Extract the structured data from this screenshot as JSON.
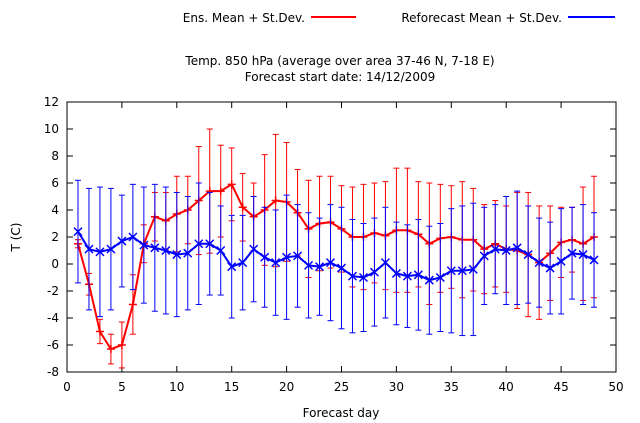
{
  "chart_data": {
    "type": "line",
    "title": "Temp. 850 hPa (average over area 37-46 N, 7-18 E)",
    "subtitle": "Forecast start date: 14/12/2009",
    "xlabel": "Forecast day",
    "ylabel": "T (C)",
    "xlim": [
      0,
      50
    ],
    "ylim": [
      -8,
      12
    ],
    "x_ticks": [
      "0",
      "5",
      "10",
      "15",
      "20",
      "25",
      "30",
      "35",
      "40",
      "45",
      "50"
    ],
    "y_ticks": [
      "-8",
      "-6",
      "-4",
      "-2",
      "0",
      "2",
      "4",
      "6",
      "8",
      "10",
      "12"
    ],
    "grid": false,
    "legend_position": "top",
    "x": [
      1,
      2,
      3,
      4,
      5,
      6,
      7,
      8,
      9,
      10,
      11,
      12,
      13,
      14,
      15,
      16,
      17,
      18,
      19,
      20,
      21,
      22,
      23,
      24,
      25,
      26,
      27,
      28,
      29,
      30,
      31,
      32,
      33,
      34,
      35,
      36,
      37,
      38,
      39,
      40,
      41,
      42,
      43,
      44,
      45,
      46,
      47,
      48
    ],
    "series": [
      {
        "name": "Ens. Mean + St.Dev.",
        "color": "#ff0000",
        "marker": "plus",
        "values": [
          1.5,
          -1.5,
          -5.0,
          -6.3,
          -6.0,
          -3.0,
          1.5,
          3.5,
          3.2,
          3.7,
          4.0,
          4.7,
          5.4,
          5.4,
          5.9,
          4.2,
          3.5,
          4.0,
          4.7,
          4.6,
          3.8,
          2.6,
          3.0,
          3.1,
          2.6,
          2.0,
          2.0,
          2.3,
          2.1,
          2.5,
          2.5,
          2.2,
          1.5,
          1.9,
          2.0,
          1.8,
          1.8,
          1.1,
          1.5,
          1.1,
          1.0,
          0.7,
          0.1,
          0.8,
          1.6,
          1.8,
          1.5,
          2.0
        ],
        "std": [
          0.3,
          0.8,
          0.9,
          1.1,
          1.7,
          2.2,
          1.4,
          1.8,
          2.1,
          2.8,
          2.5,
          4.0,
          4.6,
          3.4,
          2.7,
          2.5,
          2.5,
          4.1,
          4.9,
          4.4,
          3.2,
          3.6,
          3.5,
          3.4,
          3.2,
          3.7,
          3.9,
          3.7,
          4.0,
          4.6,
          4.6,
          3.9,
          4.5,
          4.0,
          3.8,
          4.3,
          3.8,
          3.3,
          3.2,
          3.2,
          4.3,
          4.6,
          4.2,
          3.5,
          2.6,
          2.4,
          4.2,
          4.5
        ]
      },
      {
        "name": "Reforecast Mean + St.Dev.",
        "color": "#0000ff",
        "marker": "cross",
        "values": [
          2.4,
          1.1,
          0.9,
          1.1,
          1.7,
          2.0,
          1.4,
          1.2,
          1.0,
          0.7,
          0.8,
          1.5,
          1.5,
          1.0,
          -0.2,
          0.1,
          1.1,
          0.5,
          0.1,
          0.5,
          0.6,
          -0.1,
          -0.2,
          0.1,
          -0.3,
          -0.9,
          -1.0,
          -0.6,
          0.1,
          -0.7,
          -0.9,
          -0.8,
          -1.2,
          -1.0,
          -0.5,
          -0.5,
          -0.4,
          0.6,
          1.1,
          1.0,
          1.2,
          0.7,
          0.1,
          -0.3,
          0.2,
          0.8,
          0.7,
          0.3
        ],
        "std": [
          3.8,
          4.5,
          4.8,
          4.5,
          3.4,
          3.9,
          4.3,
          4.7,
          4.7,
          4.6,
          4.2,
          4.5,
          3.8,
          3.3,
          3.8,
          3.5,
          3.9,
          3.7,
          3.9,
          4.6,
          3.8,
          3.9,
          3.6,
          4.3,
          4.5,
          4.2,
          4.0,
          4.0,
          4.1,
          3.8,
          3.8,
          4.1,
          4.0,
          4.0,
          4.6,
          4.8,
          4.9,
          3.6,
          3.3,
          4.0,
          4.2,
          3.6,
          3.3,
          3.4,
          3.9,
          3.4,
          3.7,
          3.5
        ]
      }
    ]
  }
}
